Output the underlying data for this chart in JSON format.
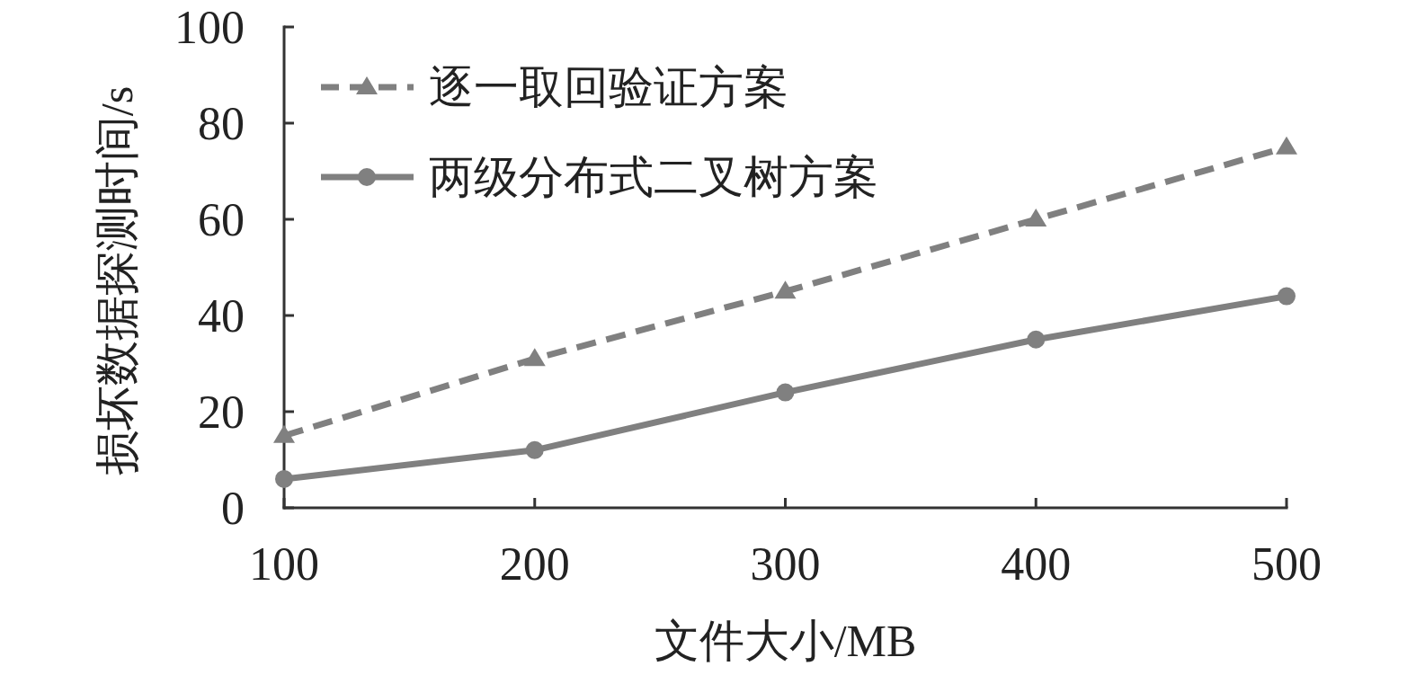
{
  "chart_data": {
    "type": "line",
    "xlabel": "文件大小/MB",
    "ylabel": "损坏数据探测时间/s",
    "x": [
      100,
      200,
      300,
      400,
      500
    ],
    "xlim": [
      100,
      500
    ],
    "xticks": [
      100,
      200,
      300,
      400,
      500
    ],
    "ylim": [
      0,
      100
    ],
    "yticks": [
      0,
      20,
      40,
      60,
      80,
      100
    ],
    "legend": "top left",
    "series": [
      {
        "name": "逐一取回验证方案",
        "color": "#808080",
        "values": [
          15,
          31,
          45,
          60,
          75
        ],
        "marker": "triangle",
        "line_style": "dashed"
      },
      {
        "name": "两级分布式二叉树方案",
        "color": "#808080",
        "values": [
          6,
          12,
          24,
          35,
          44
        ],
        "marker": "circle",
        "line_style": "solid"
      }
    ]
  }
}
